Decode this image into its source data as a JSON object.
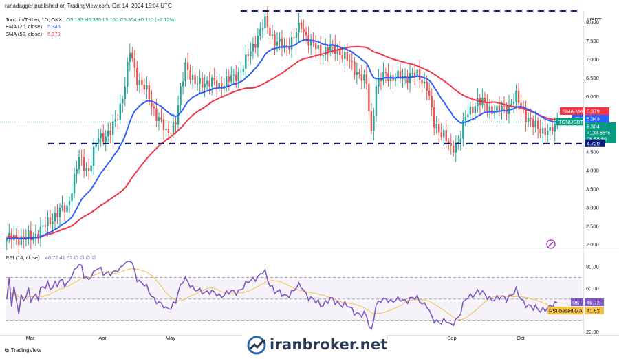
{
  "header": {
    "published": "ranadagger published on TradingView.com, Oct 14, 2024 15:04 UTC",
    "symbol": "Toncoin/Tether, 1D, OKX",
    "ohlc": "O5.195  H5.335  L5.160  C5.304  +0.110 (+2.12%)",
    "ema_label": "EMA (20, close)",
    "ema_value": "5.343",
    "sma_label": "SMA (50, close)",
    "sma_value": "5.379"
  },
  "rsi_legend": {
    "label": "RSI (14, close)",
    "values": "46.72  41.62  ∅  ∅  ∅  ∅"
  },
  "badges": {
    "sma": "SMA-MA",
    "sma_val": "5.379",
    "ema": "EMA",
    "ema_val": "5.343",
    "ticker": "TONUSDT",
    "price": "5.304",
    "change": "+133.55%",
    "countdown": "08:55:56",
    "support": "4.720",
    "rsi": "RSI",
    "rsi_val": "46.72",
    "rsi_ma": "RSI-based MA",
    "rsi_ma_val": "41.62"
  },
  "currency": "USDT",
  "watermark": "iranbroker.net",
  "footer_logo": "TradingView",
  "colors": {
    "up": "#26a69a",
    "down": "#ef5350",
    "ema": "#2962ff",
    "sma": "#f23645",
    "rsi": "#7e57c2",
    "rsi_ma": "#f5c142",
    "level": "#0d1b7a"
  },
  "chart_data": [
    {
      "type": "candlestick",
      "title": "Toncoin/Tether, 1D, OKX",
      "ylabel": "USDT",
      "ylim": [
        1.8,
        8.3
      ],
      "y_ticks": [
        "2.000",
        "2.500",
        "3.000",
        "3.500",
        "4.000",
        "4.500",
        "5.000",
        "5.500",
        "6.000",
        "6.500",
        "7.000",
        "7.500",
        "8.000"
      ],
      "x_ticks": [
        "Mar",
        "Apr",
        "May",
        "Aug",
        "Sep",
        "Oct"
      ],
      "horizontal_levels": [
        8.3,
        4.72
      ],
      "last_close": 5.304,
      "close_anchors": [
        [
          0,
          2.15
        ],
        [
          10,
          2.18
        ],
        [
          16,
          2.5
        ],
        [
          20,
          2.8
        ],
        [
          25,
          3.0
        ],
        [
          30,
          4.3
        ],
        [
          34,
          4.0
        ],
        [
          38,
          4.9
        ],
        [
          43,
          5.0
        ],
        [
          46,
          5.5
        ],
        [
          49,
          6.3
        ],
        [
          51,
          7.2
        ],
        [
          54,
          6.5
        ],
        [
          58,
          6.1
        ],
        [
          62,
          5.5
        ],
        [
          66,
          5.0
        ],
        [
          70,
          5.3
        ],
        [
          74,
          6.9
        ],
        [
          78,
          6.3
        ],
        [
          82,
          6.4
        ],
        [
          88,
          6.3
        ],
        [
          94,
          6.5
        ],
        [
          98,
          6.8
        ],
        [
          103,
          7.5
        ],
        [
          107,
          8.0
        ],
        [
          111,
          7.5
        ],
        [
          115,
          7.3
        ],
        [
          119,
          7.6
        ],
        [
          122,
          7.9
        ],
        [
          126,
          7.4
        ],
        [
          130,
          7.2
        ],
        [
          134,
          7.3
        ],
        [
          138,
          7.2
        ],
        [
          142,
          6.9
        ],
        [
          146,
          6.6
        ],
        [
          149,
          6.3
        ],
        [
          151,
          5.0
        ],
        [
          153,
          6.3
        ],
        [
          157,
          6.6
        ],
        [
          160,
          6.5
        ],
        [
          164,
          6.5
        ],
        [
          168,
          6.6
        ],
        [
          171,
          6.5
        ],
        [
          174,
          6.3
        ],
        [
          177,
          5.2
        ],
        [
          181,
          5.0
        ],
        [
          184,
          4.5
        ],
        [
          187,
          4.8
        ],
        [
          190,
          5.4
        ],
        [
          195,
          5.9
        ],
        [
          199,
          5.7
        ],
        [
          203,
          5.6
        ],
        [
          207,
          5.7
        ],
        [
          211,
          5.95
        ],
        [
          214,
          5.6
        ],
        [
          218,
          5.2
        ],
        [
          222,
          5.1
        ],
        [
          225,
          5.0
        ],
        [
          228,
          5.304
        ]
      ],
      "series": [
        {
          "name": "EMA (20, close)",
          "last": 5.343
        },
        {
          "name": "SMA (50, close)",
          "last": 5.379
        }
      ]
    },
    {
      "type": "line",
      "title": "RSI (14, close)",
      "ylim": [
        20,
        90
      ],
      "y_ticks": [
        "20.00",
        "40.00",
        "60.00",
        "80.00"
      ],
      "bands": [
        70,
        50,
        30
      ],
      "last_rsi": 46.72,
      "last_ma": 41.62
    }
  ]
}
